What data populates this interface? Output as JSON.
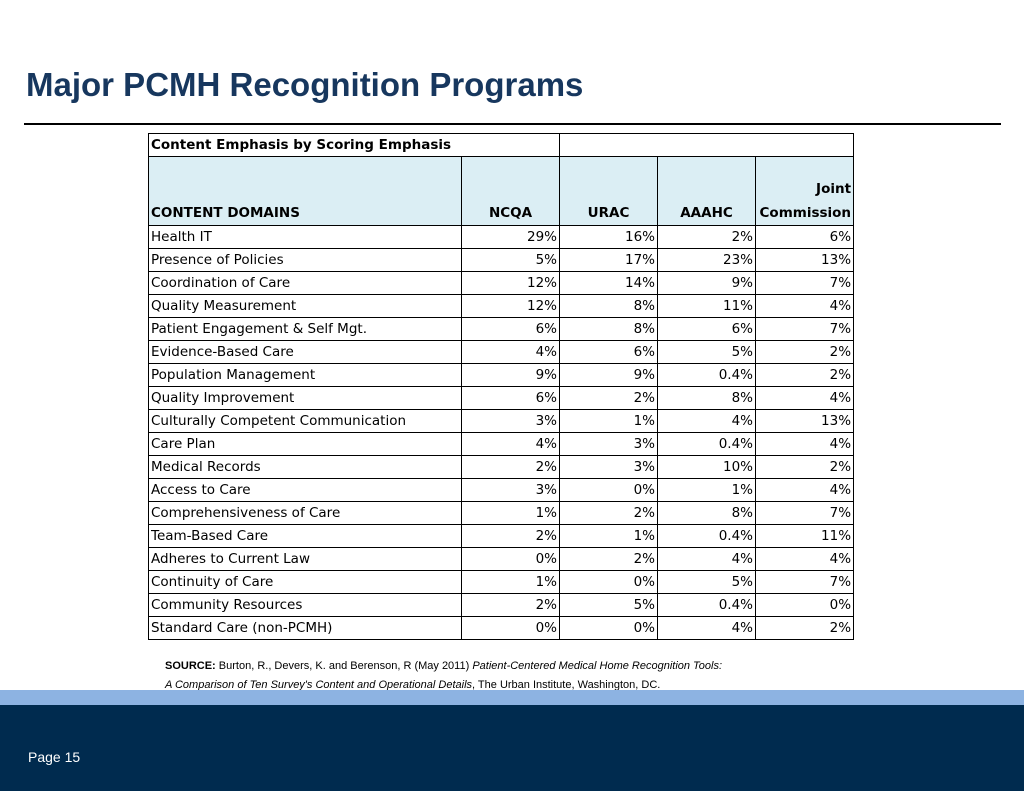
{
  "header": {
    "title": "Major PCMH Recognition Programs"
  },
  "table": {
    "caption": "Content Emphasis by Scoring Emphasis",
    "columns": [
      "CONTENT DOMAINS",
      "NCQA",
      "URAC",
      "AAAHC",
      "Joint Commission"
    ],
    "rows": [
      [
        "Health IT",
        "29%",
        "16%",
        "2%",
        "6%"
      ],
      [
        "Presence of Policies",
        "5%",
        "17%",
        "23%",
        "13%"
      ],
      [
        "Coordination of Care",
        "12%",
        "14%",
        "9%",
        "7%"
      ],
      [
        "Quality Measurement",
        "12%",
        "8%",
        "11%",
        "4%"
      ],
      [
        "Patient Engagement & Self Mgt.",
        "6%",
        "8%",
        "6%",
        "7%"
      ],
      [
        "Evidence-Based Care",
        "4%",
        "6%",
        "5%",
        "2%"
      ],
      [
        "Population Management",
        "9%",
        "9%",
        "0.4%",
        "2%"
      ],
      [
        "Quality Improvement",
        "6%",
        "2%",
        "8%",
        "4%"
      ],
      [
        "Culturally Competent Communication",
        "3%",
        "1%",
        "4%",
        "13%"
      ],
      [
        "Care Plan",
        "4%",
        "3%",
        "0.4%",
        "4%"
      ],
      [
        "Medical Records",
        "2%",
        "3%",
        "10%",
        "2%"
      ],
      [
        "Access to Care",
        "3%",
        "0%",
        "1%",
        "4%"
      ],
      [
        "Comprehensiveness of Care",
        "1%",
        "2%",
        "8%",
        "7%"
      ],
      [
        "Team-Based Care",
        "2%",
        "1%",
        "0.4%",
        "11%"
      ],
      [
        "Adheres to Current Law",
        "0%",
        "2%",
        "4%",
        "4%"
      ],
      [
        "Continuity of Care",
        "1%",
        "0%",
        "5%",
        "7%"
      ],
      [
        "Community Resources",
        "2%",
        "5%",
        "0.4%",
        "0%"
      ],
      [
        "Standard Care (non-PCMH)",
        "0%",
        "0%",
        "4%",
        "2%"
      ]
    ]
  },
  "source": {
    "label": "SOURCE:",
    "authors": "Burton, R., Devers, K. and Berenson, R (May 2011)",
    "title_line1": "Patient-Centered Medical Home Recognition Tools:",
    "title_line2": "A Comparison of Ten Survey's Content and Operational Details",
    "publisher": ", The Urban Institute, Washington, DC."
  },
  "footer": {
    "page": "Page 15"
  }
}
